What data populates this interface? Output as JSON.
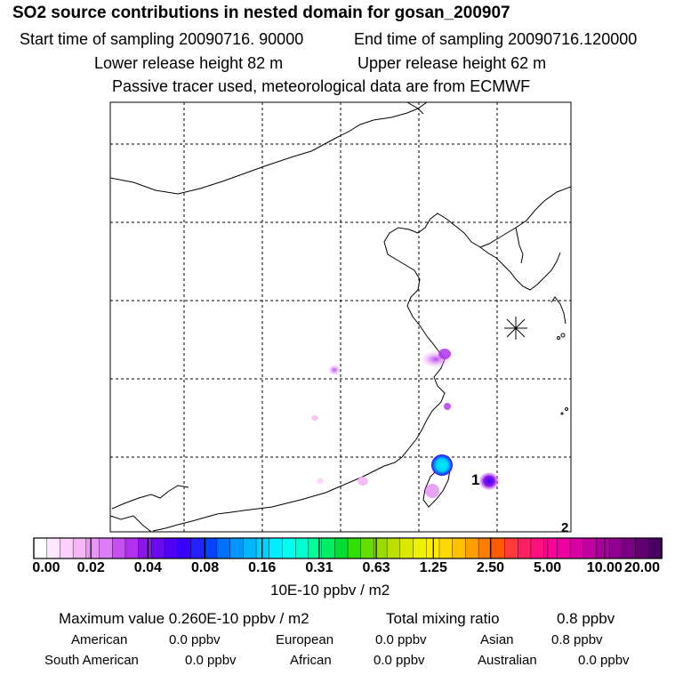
{
  "header": {
    "title": "SO2 source contributions in nested domain for gosan_200907",
    "start": "Start time of sampling 20090716. 90000",
    "end": "End time of sampling 20090716.120000",
    "lower": "Lower release height   82 m",
    "upper": "Upper release height   62 m",
    "tracer": "Passive tracer used, meteorological data are from ECMWF"
  },
  "map": {
    "receptor_label": "1",
    "corner_label": "2"
  },
  "colorbar": {
    "ticks": [
      "0.00",
      "0.02",
      "0.04",
      "0.08",
      "0.16",
      "0.31",
      "0.63",
      "1.25",
      "2.50",
      "5.00",
      "10.00",
      "20.00"
    ],
    "colors": [
      "#ffffff",
      "#ffe8ff",
      "#fbd0fb",
      "#f5b6f5",
      "#ea96f5",
      "#de7cf5",
      "#c850f0",
      "#b030ee",
      "#8a16ea",
      "#6a0aee",
      "#5000f4",
      "#3a00ff",
      "#2222ff",
      "#0044ff",
      "#0070ff",
      "#0096ff",
      "#00b6ff",
      "#00d2ff",
      "#00eeff",
      "#00ffee",
      "#00ffcc",
      "#00ff99",
      "#00ee66",
      "#00dd33",
      "#33dd00",
      "#66dd00",
      "#99dd00",
      "#bbe000",
      "#dde800",
      "#eef000",
      "#ffee00",
      "#ffd800",
      "#ffc000",
      "#ffa000",
      "#ff8000",
      "#ff5a00",
      "#ff3a3a",
      "#ff2060",
      "#ff1080",
      "#ff0099",
      "#ee00a0",
      "#d800a0",
      "#c000a0",
      "#a8009a",
      "#900090",
      "#780080",
      "#600070",
      "#480060"
    ],
    "unit": "10E-10 ppbv / m2"
  },
  "summary": {
    "max_label": "Maximum value  0.260E-10 ppbv / m2",
    "total_label": "Total mixing ratio",
    "total_value": "0.8 ppbv",
    "regions": [
      {
        "name": "American",
        "value": "0.0 ppbv"
      },
      {
        "name": "European",
        "value": "0.0 ppbv"
      },
      {
        "name": "Asian",
        "value": "0.8 ppbv"
      },
      {
        "name": "South American",
        "value": "0.0 ppbv"
      },
      {
        "name": "African",
        "value": "0.0 ppbv"
      },
      {
        "name": "Australian",
        "value": "0.0 ppbv"
      }
    ]
  }
}
